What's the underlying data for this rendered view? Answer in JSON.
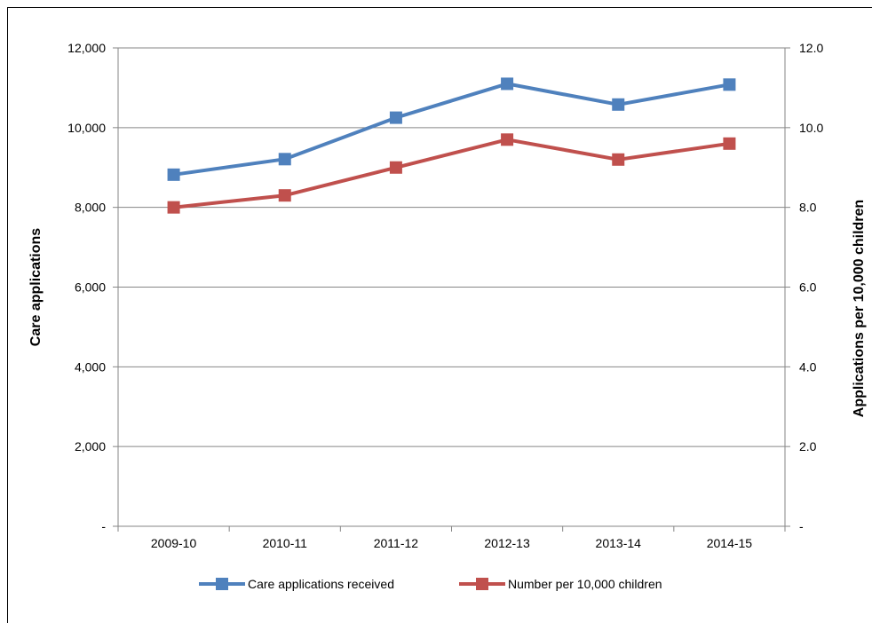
{
  "chart_data": {
    "type": "line",
    "categories": [
      "2009-10",
      "2010-11",
      "2011-12",
      "2012-13",
      "2013-14",
      "2014-15"
    ],
    "series": [
      {
        "name": "Care applications received",
        "axis": "left",
        "color": "#4F81BD",
        "values": [
          8820,
          9210,
          10250,
          11100,
          10580,
          11080
        ]
      },
      {
        "name": "Number per 10,000 children",
        "axis": "right",
        "color": "#C0504D",
        "values": [
          8.0,
          8.3,
          9.0,
          9.7,
          9.2,
          9.6
        ]
      }
    ],
    "ylabel": "Care applications",
    "y2label": "Applications per 10,000 children",
    "ylim": [
      0,
      12000
    ],
    "y2lim": [
      0,
      12
    ],
    "yticks": [
      "-",
      "2,000",
      "4,000",
      "6,000",
      "8,000",
      "10,000",
      "12,000"
    ],
    "y2ticks": [
      "-",
      "2.0",
      "4.0",
      "6.0",
      "8.0",
      "10.0",
      "12.0"
    ],
    "grid": true,
    "legend": "bottom"
  }
}
